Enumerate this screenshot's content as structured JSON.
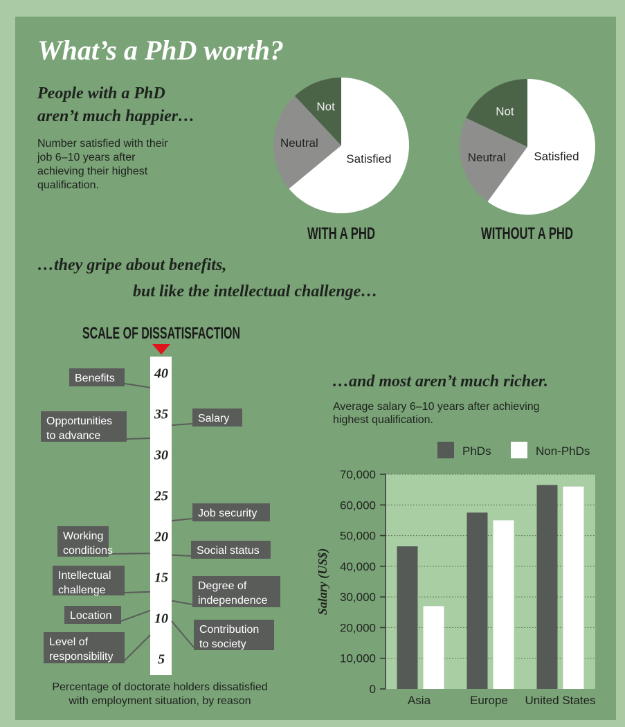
{
  "title": "What’s a PhD worth?",
  "chart_data": [
    {
      "type": "pie",
      "heading": [
        "People with a PhD",
        "aren’t much happier…"
      ],
      "subtitle": [
        "Number satisfied with their",
        "job 6–10 years after",
        "achieving their highest",
        "qualification."
      ],
      "title": "WITH A PHD",
      "categories": [
        "Satisfied",
        "Neutral",
        "Not"
      ],
      "values": [
        64,
        24,
        12
      ],
      "colors": [
        "#ffffff",
        "#8e8f8d",
        "#4b6448"
      ]
    },
    {
      "type": "pie",
      "title": "WITHOUT A PHD",
      "categories": [
        "Satisfied",
        "Neutral",
        "Not"
      ],
      "values": [
        60,
        22,
        18
      ],
      "colors": [
        "#ffffff",
        "#8e8f8d",
        "#4b6448"
      ]
    },
    {
      "type": "scale",
      "heading": [
        "…they gripe about benefits,",
        "but like the intellectual challenge…"
      ],
      "title": "SCALE OF DISSATISFACTION",
      "caption": [
        "Percentage of doctorate holders dissatisfied",
        "with employment situation, by reason"
      ],
      "categories": [
        "Benefits",
        "Opportunities to advance",
        "Salary",
        "Job security",
        "Working conditions",
        "Social status",
        "Intellectual challenge",
        "Degree of independence",
        "Location",
        "Contribution to society",
        "Level of responsibility"
      ],
      "values": [
        38.2,
        32,
        33.6,
        21.9,
        17.9,
        17.7,
        13.2,
        12.1,
        10.9,
        9.6,
        7.9
      ],
      "color": "#5a5c5a",
      "ylim": [
        3,
        42
      ],
      "yticks": [
        5,
        10,
        15,
        20,
        25,
        30,
        35,
        40
      ]
    },
    {
      "type": "bar",
      "heading": "…and most aren’t much richer.",
      "subtitle": [
        "Average salary 6–10 years after achieving",
        "highest qualification."
      ],
      "ylabel": "Salary (US$)",
      "categories": [
        "Asia",
        "Europe",
        "United States"
      ],
      "series": [
        {
          "name": "PhDs",
          "color": "#555a57",
          "values": [
            46500,
            57500,
            66500
          ]
        },
        {
          "name": "Non-PhDs",
          "color": "#ffffff",
          "values": [
            27000,
            55000,
            66000
          ]
        }
      ],
      "ylim": [
        0,
        70000
      ],
      "yticks": [
        0,
        {
          "value": 10000,
          "label": "10,000"
        },
        {
          "value": 20000,
          "label": "20,000"
        },
        {
          "value": 30000,
          "label": "30,000"
        },
        {
          "value": 40000,
          "label": "40,000"
        },
        {
          "value": 50000,
          "label": "50,000"
        },
        {
          "value": 60000,
          "label": "60,000"
        },
        {
          "value": 70000,
          "label": "70,000"
        }
      ],
      "grid": true
    }
  ]
}
